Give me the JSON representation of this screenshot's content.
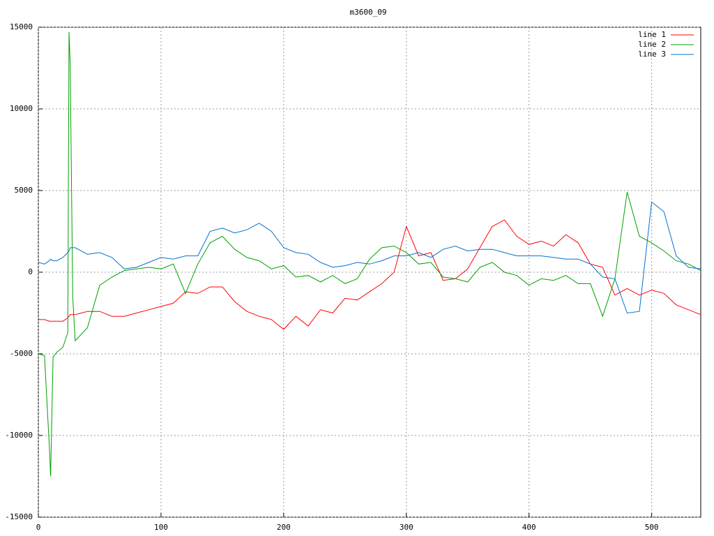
{
  "chart_data": {
    "type": "line",
    "title": "m3600_09",
    "x": [
      0,
      5,
      9,
      10,
      12,
      15,
      20,
      24,
      25,
      26,
      28,
      30,
      35,
      40,
      50,
      60,
      70,
      80,
      90,
      100,
      110,
      120,
      130,
      140,
      150,
      160,
      170,
      180,
      190,
      200,
      210,
      220,
      230,
      240,
      250,
      260,
      270,
      280,
      290,
      300,
      310,
      320,
      330,
      340,
      350,
      360,
      370,
      380,
      390,
      400,
      410,
      420,
      430,
      440,
      450,
      460,
      470,
      480,
      490,
      500,
      510,
      520,
      530,
      540
    ],
    "series": [
      {
        "name": "line 1",
        "color": "#ff0000",
        "values": [
          -2900,
          -2900,
          -3000,
          -3000,
          -3000,
          -3000,
          -3000,
          -2800,
          -2700,
          -2600,
          -2600,
          -2600,
          -2500,
          -2400,
          -2400,
          -2700,
          -2700,
          -2500,
          -2300,
          -2100,
          -1900,
          -1200,
          -1300,
          -900,
          -900,
          -1800,
          -2400,
          -2700,
          -2900,
          -3500,
          -2700,
          -3300,
          -2300,
          -2500,
          -1600,
          -1700,
          -1200,
          -700,
          0,
          2800,
          1000,
          1200,
          -500,
          -400,
          200,
          1500,
          2800,
          3200,
          2200,
          1700,
          1900,
          1600,
          2300,
          1800,
          500,
          300,
          -1400,
          -1000,
          -1400,
          -1100,
          -1300,
          -2000,
          -2300,
          -2600
        ]
      },
      {
        "name": "line 2",
        "color": "#00a000",
        "values": [
          -5000,
          -5100,
          -10700,
          -12500,
          -5200,
          -4900,
          -4600,
          -3700,
          14700,
          12700,
          -1500,
          -4200,
          -3800,
          -3400,
          -800,
          -300,
          100,
          200,
          300,
          200,
          500,
          -1300,
          500,
          1800,
          2200,
          1400,
          900,
          700,
          200,
          400,
          -300,
          -200,
          -600,
          -200,
          -700,
          -400,
          800,
          1500,
          1600,
          1200,
          500,
          600,
          -300,
          -400,
          -600,
          300,
          600,
          0,
          -200,
          -800,
          -400,
          -500,
          -200,
          -700,
          -700,
          -2700,
          -400,
          4900,
          2200,
          1800,
          1300,
          700,
          500,
          100
        ]
      },
      {
        "name": "line 3",
        "color": "#0070d0",
        "values": [
          600,
          500,
          700,
          800,
          700,
          700,
          900,
          1200,
          1300,
          1500,
          1500,
          1500,
          1300,
          1100,
          1200,
          900,
          200,
          300,
          600,
          900,
          800,
          1000,
          1000,
          2500,
          2700,
          2400,
          2600,
          3000,
          2500,
          1500,
          1200,
          1100,
          600,
          300,
          400,
          600,
          500,
          700,
          1000,
          1000,
          1200,
          900,
          1400,
          1600,
          1300,
          1400,
          1400,
          1200,
          1000,
          1000,
          1000,
          900,
          800,
          800,
          500,
          -300,
          -400,
          -2500,
          -2400,
          4300,
          3700,
          1000,
          300,
          200
        ]
      }
    ],
    "xlim": [
      0,
      540
    ],
    "ylim": [
      -15000,
      15000
    ],
    "xticks": [
      0,
      100,
      200,
      300,
      400,
      500
    ],
    "yticks": [
      -15000,
      -10000,
      -5000,
      0,
      5000,
      10000,
      15000
    ],
    "grid": true,
    "legend": "top-right"
  }
}
